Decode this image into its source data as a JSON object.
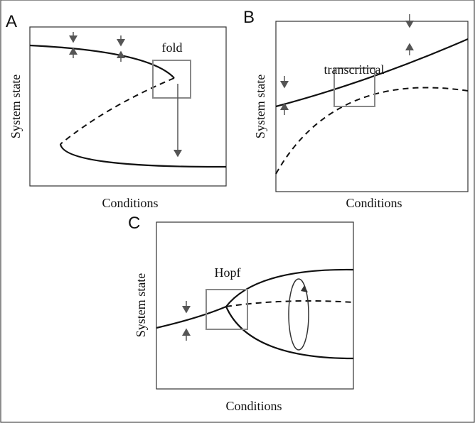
{
  "panels": [
    {
      "letter": "A",
      "xlabel": "Conditions",
      "ylabel": "System state",
      "annotation": "fold"
    },
    {
      "letter": "B",
      "xlabel": "Conditions",
      "ylabel": "System state",
      "annotation": "transcritical"
    },
    {
      "letter": "C",
      "xlabel": "Conditions",
      "ylabel": "System state",
      "annotation": "Hopf"
    }
  ]
}
